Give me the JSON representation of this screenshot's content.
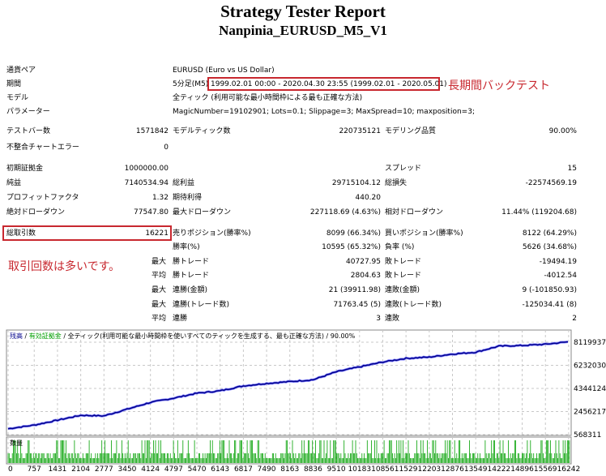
{
  "title": "Strategy Tester Report",
  "subtitle": "Nanpinia_EURUSD_M5_V1",
  "info": [
    {
      "label": "通貨ペア",
      "value": "EURUSD (Euro vs US Dollar)"
    },
    {
      "label": "期間",
      "prefix": "5分足(M5)",
      "value": "1999.02.01 00:00 - 2020.04.30 23:55 (1999.02.01 - 2020.05.01)"
    },
    {
      "label": "モデル",
      "value": "全ティック (利用可能な最小時間枠による最も正確な方法)"
    },
    {
      "label": "パラメーター",
      "value": "MagicNumber=19102901; Lots=0.1; Slippage=3; MaxSpread=10; maxposition=3;"
    }
  ],
  "annotations": {
    "period_note": "長期間バックテスト",
    "trades_note": "取引回数は多いです。"
  },
  "rows": [
    [
      {
        "l": "テストバー数",
        "v": "1571842"
      },
      {
        "l": "モデルティック数",
        "v": "220735121"
      },
      {
        "l": "モデリング品質",
        "v": "90.00%"
      }
    ],
    [
      {
        "l": "不整合チャートエラー",
        "v": "0"
      }
    ],
    [
      {
        "l": "初期証拠金",
        "v": "1000000.00"
      },
      {
        "l": "",
        "v": ""
      },
      {
        "l": "スプレッド",
        "v": "15"
      }
    ],
    [
      {
        "l": "純益",
        "v": "7140534.94"
      },
      {
        "l": "総利益",
        "v": "29715104.12"
      },
      {
        "l": "総損失",
        "v": "-22574569.19"
      }
    ],
    [
      {
        "l": "プロフィットファクタ",
        "v": "1.32"
      },
      {
        "l": "期待利得",
        "v": "440.20"
      }
    ],
    [
      {
        "l": "絶対ドローダウン",
        "v": "77547.80"
      },
      {
        "l": "最大ドローダウン",
        "v": "227118.69 (4.63%)"
      },
      {
        "l": "相対ドローダウン",
        "v": "11.44% (119204.68)"
      }
    ],
    [
      {
        "l": "総取引数",
        "v": "16221"
      },
      {
        "l": "売りポジション(勝率%)",
        "v": "8099 (66.34%)"
      },
      {
        "l": "買いポジション(勝率%)",
        "v": "8122 (64.29%)"
      }
    ],
    [
      {
        "l": "",
        "v": ""
      },
      {
        "l": "勝率(%)",
        "v": "10595 (65.32%)"
      },
      {
        "l": "負率 (%)",
        "v": "5626 (34.68%)"
      }
    ],
    [
      {
        "l": "最大",
        "v": ""
      },
      {
        "l": "勝トレード",
        "v": "40727.95"
      },
      {
        "l": "敗トレード",
        "v": "-19494.19"
      }
    ],
    [
      {
        "l": "平均",
        "v": ""
      },
      {
        "l": "勝トレード",
        "v": "2804.63"
      },
      {
        "l": "敗トレード",
        "v": "-4012.54"
      }
    ],
    [
      {
        "l": "最大",
        "v": ""
      },
      {
        "l": "連勝(金額)",
        "v": "21 (39911.98)"
      },
      {
        "l": "連敗(金額)",
        "v": "9 (-101850.93)"
      }
    ],
    [
      {
        "l": "最大",
        "v": ""
      },
      {
        "l": "連勝(トレード数)",
        "v": "71763.45 (5)"
      },
      {
        "l": "連敗(トレード数)",
        "v": "-125034.41 (8)"
      }
    ],
    [
      {
        "l": "平均",
        "v": ""
      },
      {
        "l": "連勝",
        "v": "3"
      },
      {
        "l": "連敗",
        "v": "2"
      }
    ]
  ],
  "chart_data": {
    "type": "line",
    "legend": {
      "balance": "残高",
      "equity": "有効証拠金",
      "model": "全ティック(利用可能な最小時間枠を使いすべてのティックを生成する、最も正確な方法)",
      "quality": "90.00%"
    },
    "volume_label": "数量",
    "colors": {
      "balance": "#00008b",
      "equity": "#00a000",
      "volume": "#00a000",
      "grid": "#c8c8c8"
    },
    "y_ticks": [
      8119937,
      6232030,
      4344124,
      2456217,
      568311
    ],
    "x_ticks": [
      0,
      757,
      1431,
      2104,
      2777,
      3450,
      4124,
      4797,
      5470,
      6143,
      6817,
      7490,
      8163,
      8836,
      9510,
      10183,
      10856,
      11529,
      12203,
      12876,
      13549,
      14222,
      14896,
      15569,
      16242
    ],
    "ylim": [
      568311,
      8119937
    ],
    "xlim": [
      0,
      16221
    ],
    "series": [
      {
        "x": [
          0,
          757,
          1431,
          2104,
          2777,
          3450,
          4124,
          4797,
          5470,
          6143,
          6817,
          7490,
          8163,
          8836,
          9510,
          10183,
          10856,
          11529,
          12203,
          12876,
          13549,
          14222,
          14896,
          15569,
          16221
        ],
        "y": [
          1050000,
          1350000,
          1750000,
          2150000,
          2100000,
          2650000,
          3200000,
          3550000,
          3950000,
          4150000,
          4550000,
          4750000,
          4900000,
          5050000,
          5700000,
          6100000,
          6500000,
          6800000,
          6900000,
          7150000,
          7300000,
          7800000,
          7850000,
          7950000,
          8150000
        ]
      }
    ]
  }
}
